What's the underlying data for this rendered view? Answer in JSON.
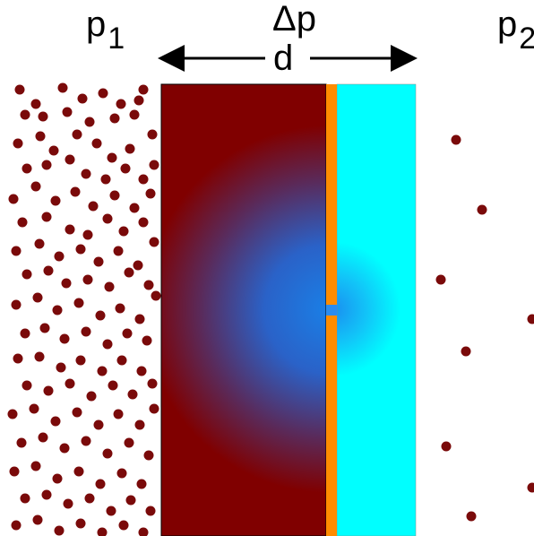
{
  "labels": {
    "p1": "p",
    "p1_sub": "1",
    "delta_p": "Δp",
    "p2": "p",
    "p2_sub": "2",
    "d": "d"
  },
  "colors": {
    "particle": "#7a0a0a",
    "left_slab": "#800000",
    "left_gradient_center": "#1a7fe6",
    "membrane": "#ff8c00",
    "right_slab": "#00ffff",
    "right_gradient_center": "#1a8ff0",
    "arrow": "#000000"
  },
  "icons": {
    "arrow_left": "arrow-left-icon",
    "arrow_right": "arrow-right-icon"
  },
  "particle_density": {
    "left_side": "high",
    "right_side": "low"
  }
}
